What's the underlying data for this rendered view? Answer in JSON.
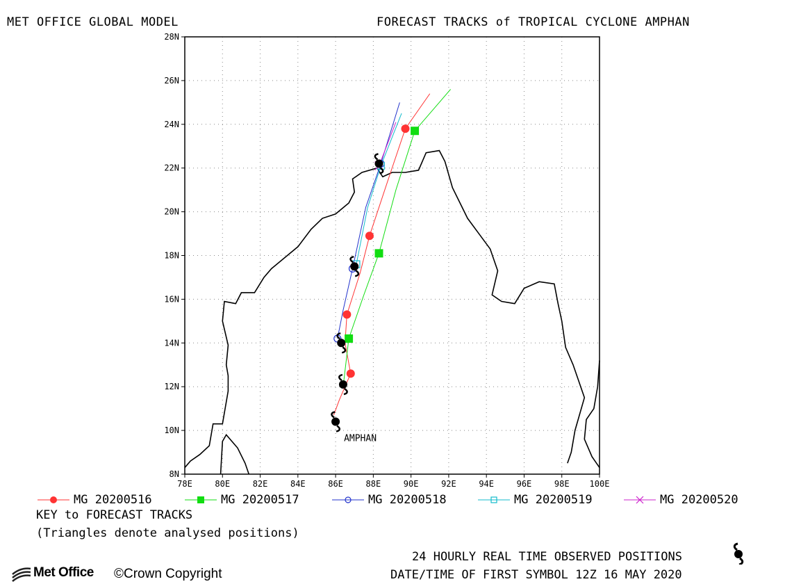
{
  "header": {
    "left_title": "MET OFFICE GLOBAL MODEL",
    "right_title": "FORECAST TRACKS of TROPICAL CYCLONE AMPHAN"
  },
  "map": {
    "storm_label": "AMPHAN",
    "lon_range": [
      78,
      100
    ],
    "lat_range": [
      8,
      28
    ],
    "grid": true,
    "x_ticks": [
      "78E",
      "80E",
      "82E",
      "84E",
      "86E",
      "88E",
      "90E",
      "92E",
      "94E",
      "96E",
      "98E",
      "100E"
    ],
    "y_ticks": [
      "8N",
      "10N",
      "12N",
      "14N",
      "16N",
      "18N",
      "20N",
      "22N",
      "24N",
      "26N",
      "28N"
    ],
    "coastline": [
      [
        [
          78.0,
          8.3
        ],
        [
          78.3,
          8.6
        ],
        [
          78.8,
          8.9
        ],
        [
          79.3,
          9.3
        ],
        [
          79.5,
          10.3
        ],
        [
          80.0,
          10.3
        ],
        [
          80.3,
          11.8
        ],
        [
          80.3,
          12.5
        ],
        [
          80.2,
          13.0
        ],
        [
          80.3,
          13.9
        ],
        [
          80.0,
          15.0
        ],
        [
          80.1,
          15.9
        ],
        [
          80.7,
          15.8
        ],
        [
          81.0,
          16.3
        ],
        [
          81.7,
          16.3
        ],
        [
          82.2,
          17.0
        ],
        [
          82.6,
          17.4
        ],
        [
          83.3,
          17.9
        ],
        [
          84.0,
          18.4
        ],
        [
          84.7,
          19.2
        ],
        [
          85.3,
          19.7
        ],
        [
          86.0,
          19.9
        ],
        [
          86.7,
          20.4
        ],
        [
          87.0,
          20.9
        ],
        [
          86.9,
          21.5
        ],
        [
          87.4,
          21.8
        ],
        [
          88.2,
          22.0
        ],
        [
          88.5,
          21.6
        ],
        [
          89.0,
          21.8
        ],
        [
          89.7,
          21.8
        ],
        [
          90.4,
          21.9
        ],
        [
          90.8,
          22.7
        ],
        [
          91.5,
          22.8
        ],
        [
          91.8,
          22.3
        ],
        [
          92.2,
          21.1
        ],
        [
          92.6,
          20.4
        ],
        [
          93.0,
          19.7
        ],
        [
          93.6,
          19.0
        ],
        [
          94.2,
          18.3
        ],
        [
          94.6,
          17.3
        ],
        [
          94.3,
          16.2
        ],
        [
          94.8,
          15.9
        ],
        [
          95.5,
          15.8
        ],
        [
          96.0,
          16.5
        ],
        [
          96.8,
          16.8
        ],
        [
          97.6,
          16.7
        ],
        [
          97.8,
          15.8
        ],
        [
          98.0,
          15.0
        ],
        [
          98.2,
          13.8
        ],
        [
          98.6,
          13.0
        ],
        [
          99.2,
          11.5
        ],
        [
          98.7,
          10.0
        ],
        [
          98.5,
          9.0
        ],
        [
          98.3,
          8.5
        ]
      ],
      [
        [
          79.9,
          8.0
        ],
        [
          80.0,
          9.5
        ],
        [
          80.2,
          9.8
        ],
        [
          80.8,
          9.2
        ],
        [
          81.2,
          8.5
        ],
        [
          81.4,
          8.0
        ]
      ],
      [
        [
          100.0,
          8.3
        ],
        [
          99.6,
          8.8
        ],
        [
          99.2,
          9.6
        ],
        [
          99.3,
          10.5
        ],
        [
          99.7,
          11.0
        ],
        [
          99.9,
          12.0
        ],
        [
          100.0,
          13.2
        ]
      ]
    ]
  },
  "observed": {
    "positions": [
      [
        86.0,
        10.4
      ],
      [
        86.4,
        12.1
      ],
      [
        86.3,
        14.0
      ],
      [
        87.0,
        17.5
      ],
      [
        88.3,
        22.2
      ]
    ],
    "symbol_name": "cyclone-icon"
  },
  "tracks": [
    {
      "name": "MG 20200516",
      "color": "#ff3333",
      "marker": "filled-circle",
      "line": [
        [
          85.9,
          10.7
        ],
        [
          86.2,
          11.4
        ],
        [
          86.8,
          12.6
        ],
        [
          86.5,
          14.0
        ],
        [
          86.6,
          15.3
        ],
        [
          87.3,
          17.2
        ],
        [
          87.8,
          18.9
        ],
        [
          88.8,
          21.5
        ],
        [
          89.7,
          23.8
        ],
        [
          91.0,
          25.4
        ]
      ],
      "points": [
        [
          86.8,
          12.6
        ],
        [
          86.6,
          15.3
        ],
        [
          87.8,
          18.9
        ],
        [
          89.7,
          23.8
        ]
      ]
    },
    {
      "name": "MG 20200517",
      "color": "#11dd11",
      "marker": "filled-square",
      "line": [
        [
          86.4,
          12.0
        ],
        [
          86.7,
          14.2
        ],
        [
          87.5,
          16.2
        ],
        [
          88.3,
          18.1
        ],
        [
          89.2,
          21.0
        ],
        [
          90.2,
          23.7
        ],
        [
          92.1,
          25.6
        ]
      ],
      "points": [
        [
          86.7,
          14.2
        ],
        [
          88.3,
          18.1
        ],
        [
          90.2,
          23.7
        ]
      ]
    },
    {
      "name": "MG 20200518",
      "color": "#2233cc",
      "marker": "open-circle",
      "line": [
        [
          86.1,
          14.2
        ],
        [
          86.4,
          15.5
        ],
        [
          86.9,
          17.4
        ],
        [
          87.6,
          20.2
        ],
        [
          88.4,
          22.2
        ],
        [
          89.4,
          25.0
        ]
      ],
      "points": [
        [
          86.1,
          14.2
        ],
        [
          86.9,
          17.4
        ],
        [
          88.4,
          22.2
        ]
      ]
    },
    {
      "name": "MG 20200519",
      "color": "#11bbcc",
      "marker": "open-square",
      "line": [
        [
          87.1,
          17.6
        ],
        [
          87.7,
          20.2
        ],
        [
          88.4,
          22.1
        ],
        [
          89.5,
          24.5
        ]
      ],
      "points": [
        [
          87.1,
          17.6
        ],
        [
          88.4,
          22.1
        ]
      ]
    },
    {
      "name": "MG 20200520",
      "color": "#cc22cc",
      "marker": "x",
      "line": [
        [
          88.3,
          22.1
        ],
        [
          89.2,
          24.1
        ]
      ],
      "points": [
        [
          88.3,
          22.1
        ]
      ]
    }
  ],
  "legend": {
    "key_title": "KEY to FORECAST TRACKS",
    "key_note": "(Triangles denote analysed positions)"
  },
  "footer": {
    "logo_text": "Met Office",
    "copyright": "©Crown Copyright",
    "observed_label": "24 HOURLY REAL TIME OBSERVED POSITIONS",
    "first_symbol": "DATE/TIME OF FIRST SYMBOL 12Z 16 MAY 2020"
  }
}
